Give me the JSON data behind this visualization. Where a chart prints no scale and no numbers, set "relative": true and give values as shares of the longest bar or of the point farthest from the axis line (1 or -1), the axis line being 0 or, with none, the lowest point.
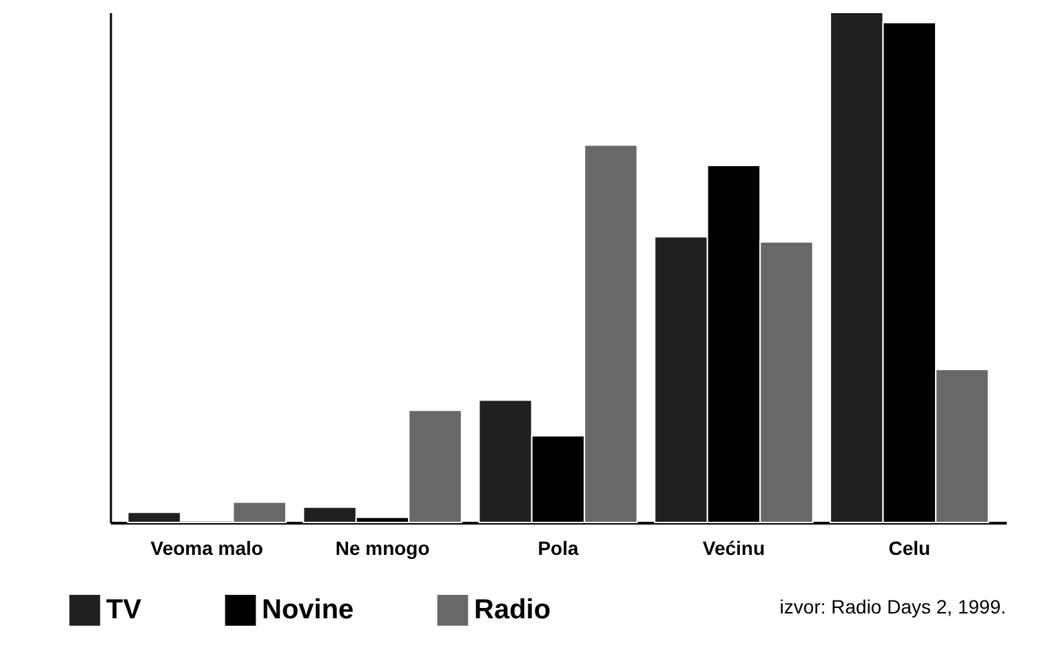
{
  "chart_data": {
    "type": "bar",
    "relative": true,
    "categories": [
      "Veoma malo",
      "Ne mnogo",
      "Pola",
      "Većinu",
      "Celu"
    ],
    "series": [
      {
        "name": "TV",
        "color": "#202020",
        "values": [
          0.02,
          0.03,
          0.24,
          0.56,
          1
        ]
      },
      {
        "name": "Novine",
        "color": "#000000",
        "values": [
          0.003,
          0.01,
          0.17,
          0.7,
          0.98
        ]
      },
      {
        "name": "Radio",
        "color": "#686868",
        "values": [
          0.04,
          0.22,
          0.74,
          0.55,
          0.3
        ]
      }
    ],
    "legend": "bottom left",
    "grid": false,
    "annotations": [
      "izvor: Radio Days 2, 1999."
    ]
  }
}
